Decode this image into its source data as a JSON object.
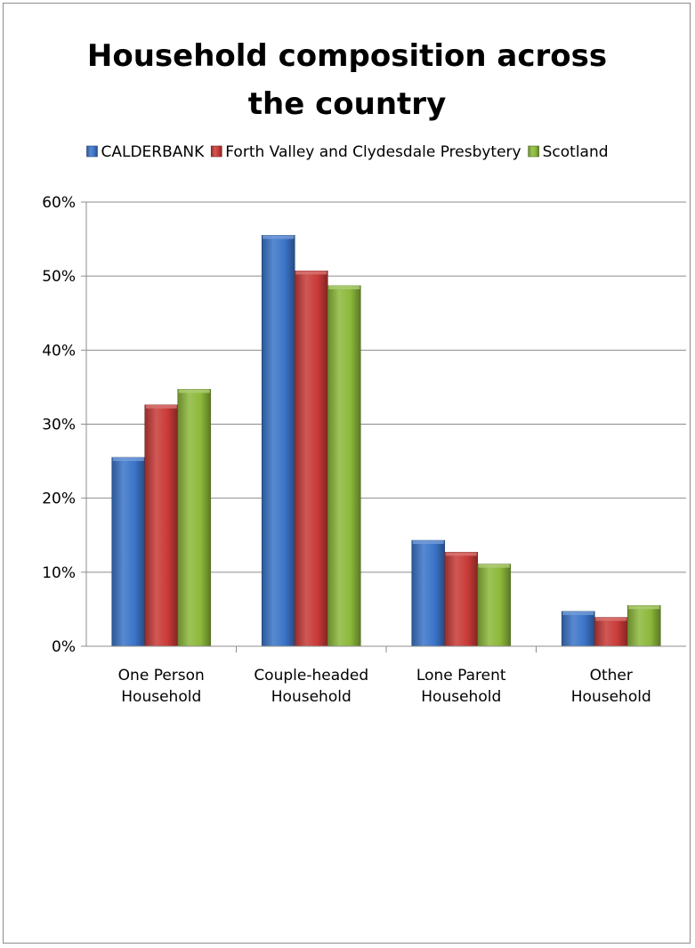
{
  "chart_data": {
    "type": "bar",
    "title_lines": [
      "Household composition across",
      "the country"
    ],
    "categories": [
      [
        "One Person",
        "Household"
      ],
      [
        "Couple-headed",
        "Household"
      ],
      [
        "Lone Parent",
        "Household"
      ],
      [
        "Other",
        "Household"
      ]
    ],
    "series": [
      {
        "name": "CALDERBANK",
        "color": "#3b74c8",
        "values": [
          25.5,
          55.5,
          14.3,
          4.7
        ]
      },
      {
        "name": "Forth Valley and Clydesdale Presbytery",
        "color": "#c83a37",
        "values": [
          32.6,
          50.7,
          12.7,
          3.9
        ]
      },
      {
        "name": "Scotland",
        "color": "#8cb83a",
        "values": [
          34.7,
          48.7,
          11.1,
          5.5
        ]
      }
    ],
    "ylim": [
      0,
      60
    ],
    "yticks": [
      "0%",
      "10%",
      "20%",
      "30%",
      "40%",
      "50%",
      "60%"
    ],
    "grid": true,
    "legend_position": "top"
  }
}
